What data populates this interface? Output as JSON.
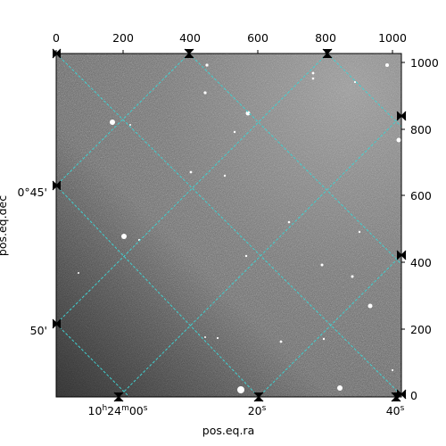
{
  "figure": {
    "xlabel_bottom": "pos.eq.ra",
    "ylabel_left": "pos.eq.dec",
    "pixel_axis": {
      "x_range": [
        0,
        1020
      ],
      "y_range": [
        0,
        1020
      ],
      "top_ticks": [
        "0",
        "200",
        "400",
        "600",
        "800",
        "1000"
      ],
      "right_ticks": [
        "0",
        "200",
        "400",
        "600",
        "800",
        "1000"
      ]
    },
    "world_axis": {
      "ra_ticks": [
        {
          "h": "10",
          "m": "24",
          "s": "00",
          "text": "10h24m00s"
        },
        {
          "s": "20",
          "text": "20s"
        },
        {
          "s": "40",
          "text": "40s"
        }
      ],
      "dec_ticks": [
        "0°45'",
        "50'"
      ]
    },
    "grid": true,
    "grid_color": "#40d0d0",
    "image_style": "grayscale star field"
  }
}
